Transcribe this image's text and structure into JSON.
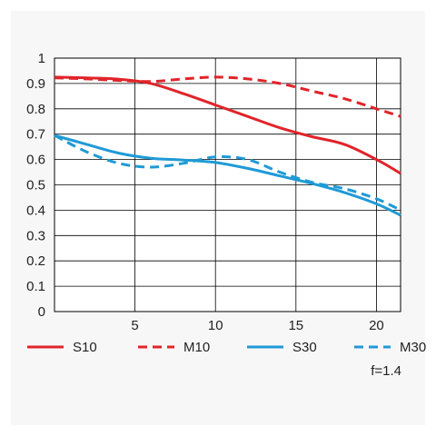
{
  "chart_data": {
    "type": "line",
    "x_range": [
      0,
      21.5
    ],
    "ylim": [
      0,
      1
    ],
    "x_ticks": [
      5,
      10,
      15,
      20
    ],
    "y_ticks": [
      0,
      0.1,
      0.2,
      0.3,
      0.4,
      0.5,
      0.6,
      0.7,
      0.8,
      0.9,
      1
    ],
    "y_tick_labels": [
      "0",
      "0.1",
      "0.2",
      "0.3",
      "0.4",
      "0.5",
      "0.6",
      "0.7",
      "0.8",
      "0.9",
      "1"
    ],
    "x_tick_labels": [
      "5",
      "10",
      "15",
      "20"
    ],
    "grid": true,
    "legend_position": "bottom",
    "series": [
      {
        "name": "S10",
        "color": "#e0242a",
        "dash": "solid",
        "x": [
          0,
          2,
          4,
          6,
          8,
          10,
          12,
          14,
          16,
          18,
          20,
          21.5
        ],
        "y": [
          0.925,
          0.922,
          0.917,
          0.9,
          0.86,
          0.815,
          0.77,
          0.725,
          0.69,
          0.66,
          0.6,
          0.545
        ]
      },
      {
        "name": "M10",
        "color": "#e0242a",
        "dash": "dashed",
        "x": [
          0,
          2,
          4,
          6,
          8,
          10,
          12,
          14,
          16,
          18,
          20,
          21.5
        ],
        "y": [
          0.922,
          0.918,
          0.912,
          0.908,
          0.918,
          0.925,
          0.918,
          0.9,
          0.87,
          0.84,
          0.8,
          0.77
        ]
      },
      {
        "name": "S30",
        "color": "#1f9ad6",
        "dash": "solid",
        "x": [
          0,
          2,
          4,
          6,
          8,
          10,
          12,
          14,
          16,
          18,
          20,
          21.5
        ],
        "y": [
          0.695,
          0.66,
          0.625,
          0.605,
          0.598,
          0.588,
          0.565,
          0.535,
          0.505,
          0.47,
          0.425,
          0.38
        ]
      },
      {
        "name": "M30",
        "color": "#1f9ad6",
        "dash": "dashed",
        "x": [
          0,
          2,
          4,
          6,
          8,
          10,
          12,
          14,
          16,
          18,
          20,
          21.5
        ],
        "y": [
          0.695,
          0.63,
          0.585,
          0.57,
          0.585,
          0.61,
          0.6,
          0.55,
          0.51,
          0.485,
          0.445,
          0.4
        ]
      }
    ],
    "annotation": "f=1.4"
  }
}
